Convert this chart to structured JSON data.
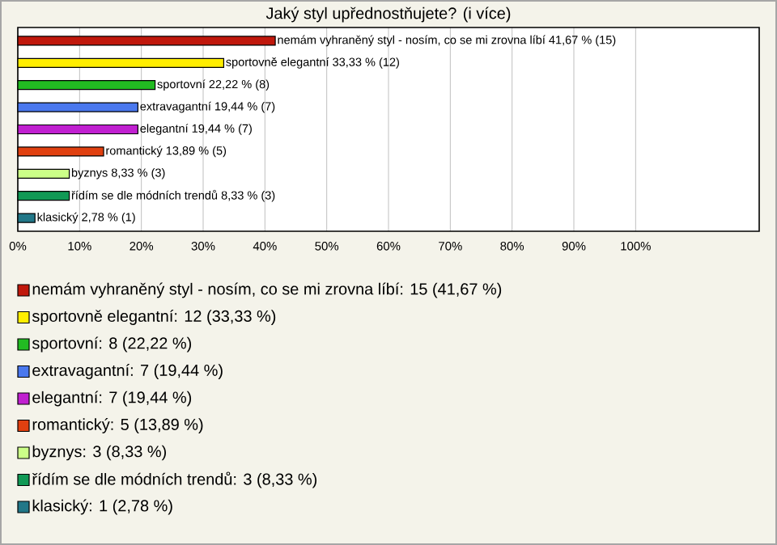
{
  "chart_data": {
    "type": "bar",
    "orientation": "horizontal",
    "title": "Jaký styl upřednostňujete? (i více)",
    "categories": [
      "nemám vyhraněný styl - nosím, co se mi zrovna líbí 41,67 % (15)",
      "sportovně elegantní 33,33 % (12)",
      "sportovní 22,22 % (8)",
      "extravagantní 19,44 % (7)",
      "elegantní 19,44 % (7)",
      "romantický 13,89 % (5)",
      "byznys 8,33 % (3)",
      "řídím se dle módních trendů 8,33 % (3)",
      "klasický 2,78 % (1)"
    ],
    "values": [
      41.67,
      33.33,
      22.22,
      19.44,
      19.44,
      13.89,
      8.33,
      8.33,
      2.78
    ],
    "colors": [
      "#c0180c",
      "#ffee00",
      "#22bb22",
      "#4a78ee",
      "#c020d0",
      "#e04010",
      "#ccff88",
      "#119955",
      "#227788"
    ],
    "xlim": [
      0,
      120
    ],
    "xticks": [
      {
        "value": 0,
        "label": "0%"
      },
      {
        "value": 10,
        "label": "10%"
      },
      {
        "value": 20,
        "label": "20%"
      },
      {
        "value": 30,
        "label": "30%"
      },
      {
        "value": 40,
        "label": "40%"
      },
      {
        "value": 50,
        "label": "50%"
      },
      {
        "value": 60,
        "label": "60%"
      },
      {
        "value": 70,
        "label": "70%"
      },
      {
        "value": 80,
        "label": "80%"
      },
      {
        "value": 90,
        "label": "90%"
      },
      {
        "value": 100,
        "label": "100%"
      }
    ],
    "grid": "x",
    "annotations": [
      "nemám vyhraněný styl - nosím, co se mi zrovna líbí: 15 (41,67 %)",
      "sportovně elegantní: 12 (33,33 %)",
      "sportovní: 8 (22,22 %)",
      "extravagantní: 7 (19,44 %)",
      "elegantní: 7 (19,44 %)",
      "romantický: 5 (13,89 %)",
      "byznys: 3 (8,33 %)",
      "řídím se dle módních trendů: 3 (8,33 %)",
      "klasický: 1 (2,78 %)"
    ]
  }
}
